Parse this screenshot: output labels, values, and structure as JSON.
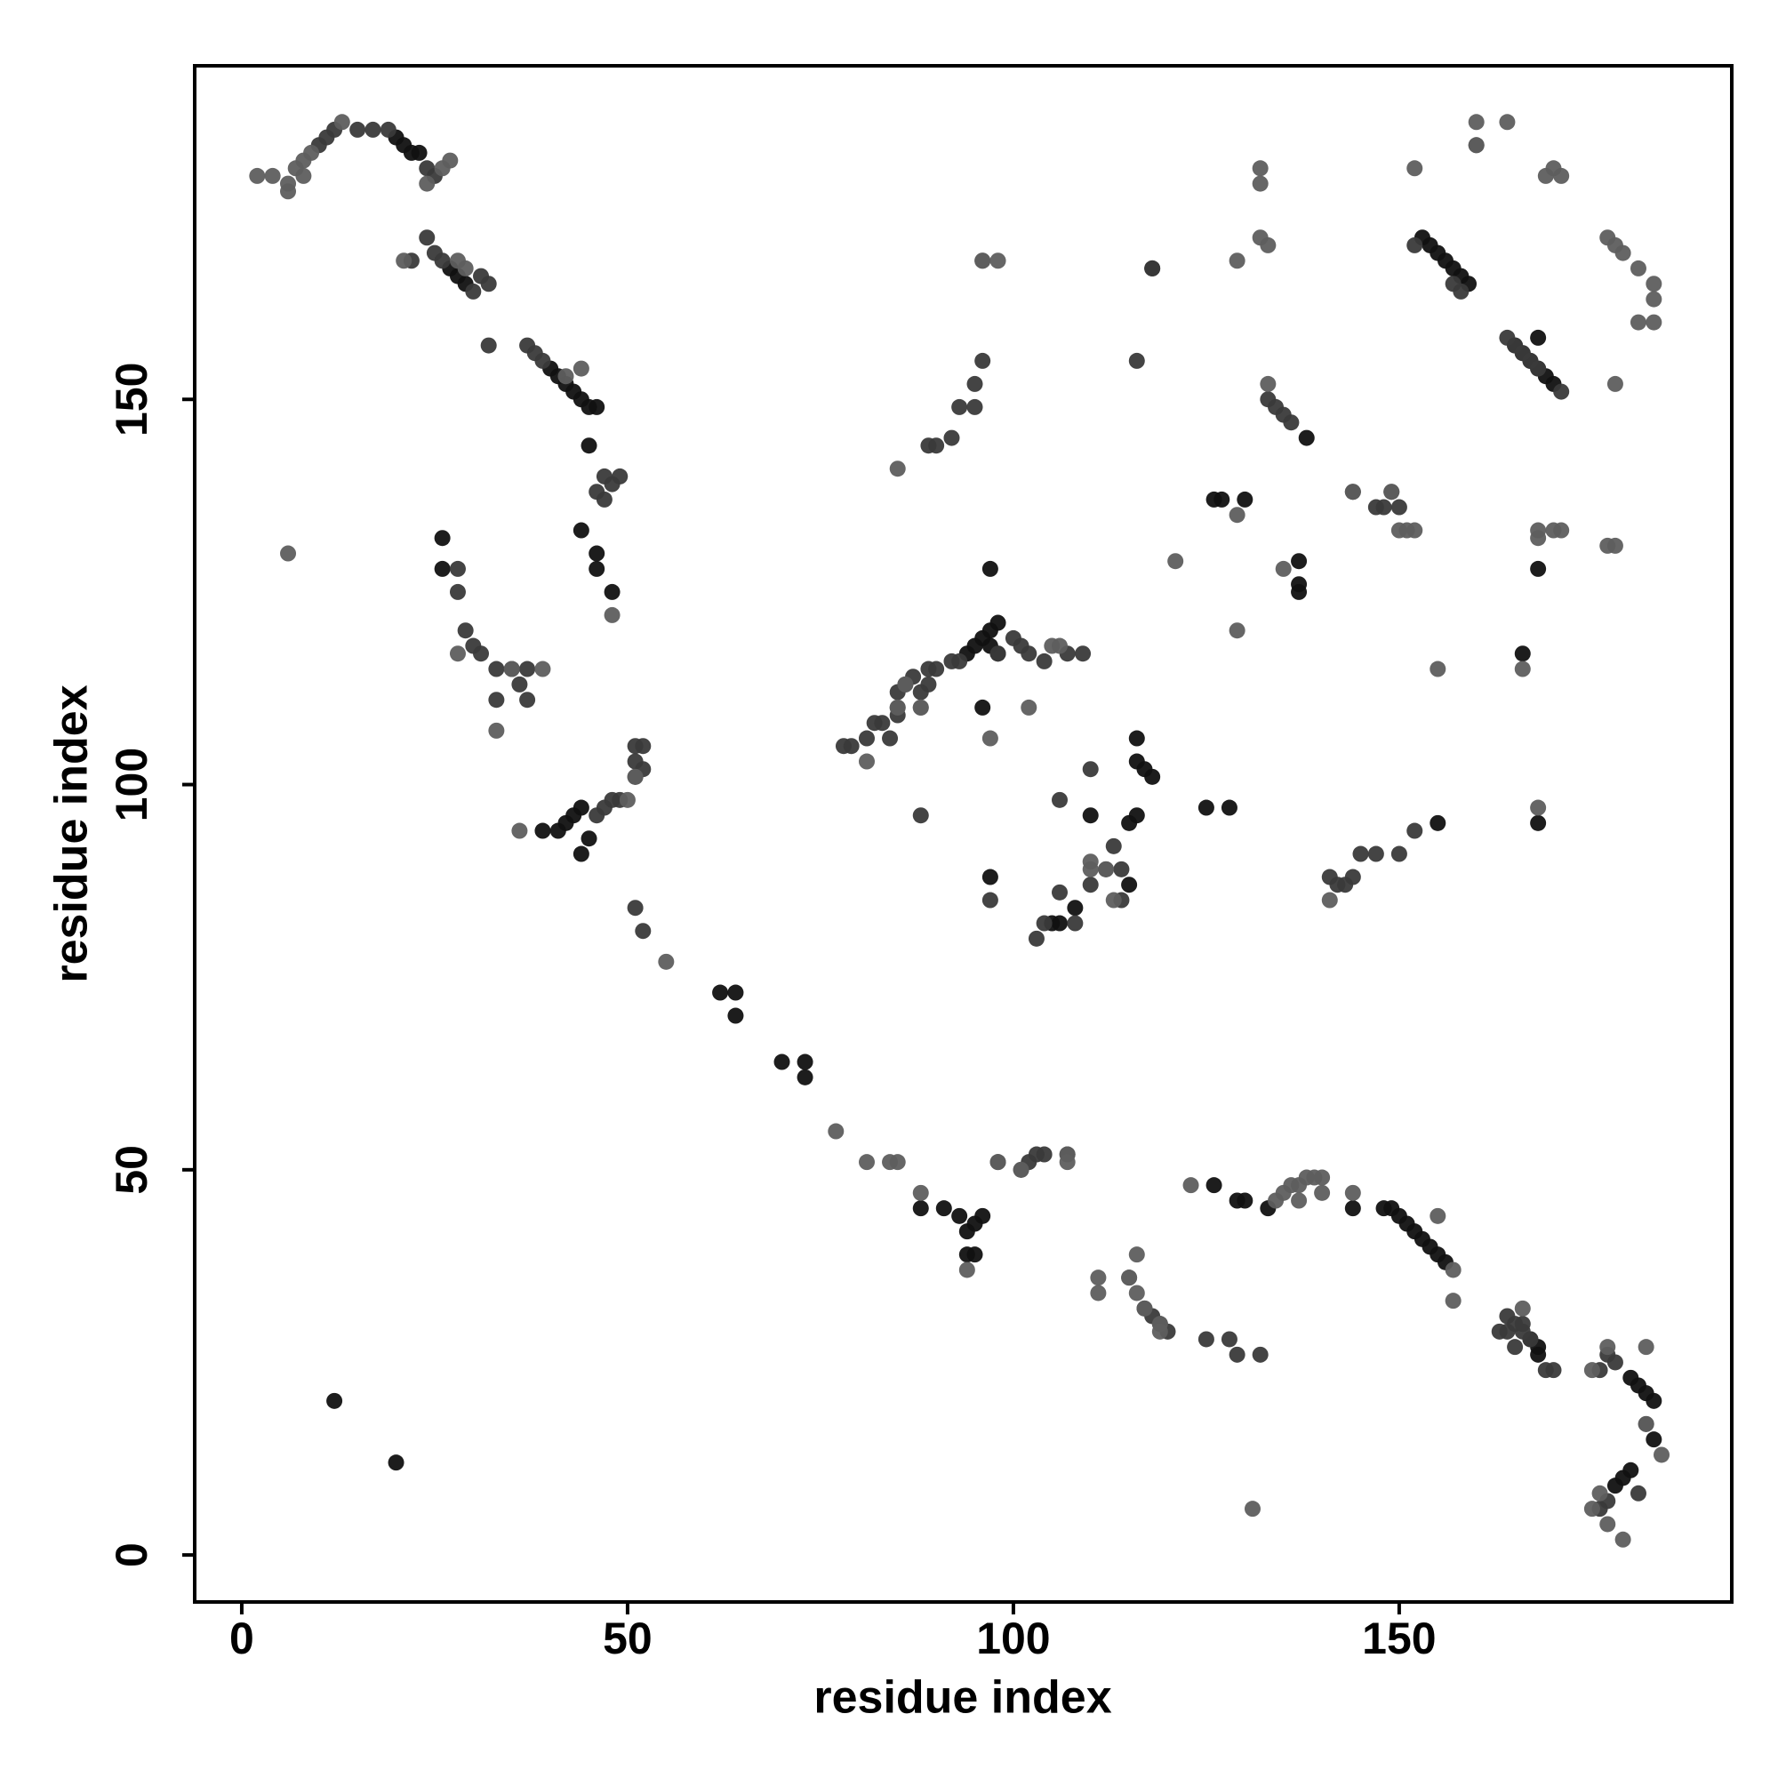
{
  "chart_data": {
    "type": "scatter",
    "xlabel": "residue index",
    "ylabel": "residue index",
    "xlim": [
      -6.1,
      193.1
    ],
    "ylim": [
      -6.1,
      193.3
    ],
    "xticks": [
      0,
      50,
      100,
      150
    ],
    "yticks": [
      0,
      50,
      100,
      150
    ],
    "series": [
      {
        "color": "#111111",
        "x": [
          20,
          21,
          22,
          23,
          27,
          28,
          29,
          40,
          41,
          42,
          43,
          44,
          45,
          46,
          45,
          46,
          46,
          48,
          44,
          26,
          26,
          39,
          41,
          42,
          43,
          44,
          45,
          44,
          62,
          64,
          64,
          70,
          73,
          73,
          88,
          91,
          93,
          94,
          95,
          96,
          94,
          95,
          126,
          129,
          130,
          133,
          144,
          148,
          149,
          150,
          151,
          152,
          153,
          154,
          155,
          156,
          167,
          168,
          168,
          180,
          181,
          182,
          183,
          183,
          180,
          179,
          178,
          94,
          95,
          96,
          97,
          98,
          97,
          98,
          97,
          97,
          110,
          116,
          116,
          117,
          118,
          115,
          116,
          115,
          105,
          106,
          108,
          125,
          128,
          96,
          118,
          137,
          138,
          137,
          137,
          126,
          127,
          130,
          144,
          155,
          153,
          154,
          155,
          156,
          157,
          158,
          159,
          165,
          166,
          167,
          168,
          169,
          170,
          168,
          166,
          168,
          168,
          20,
          12
        ],
        "y": [
          184,
          183,
          182,
          182,
          167,
          166,
          165,
          154,
          153,
          152,
          151,
          150,
          149,
          149,
          144,
          130,
          128,
          125,
          133,
          132,
          128,
          94,
          94,
          95,
          96,
          97,
          93,
          91,
          73,
          73,
          70,
          64,
          64,
          62,
          45,
          45,
          44,
          42,
          43,
          44,
          39,
          39,
          48,
          46,
          46,
          45,
          45,
          45,
          45,
          44,
          43,
          42,
          41,
          40,
          39,
          38,
          28,
          27,
          26,
          23,
          22,
          21,
          20,
          15,
          11,
          10,
          9,
          117,
          118,
          119,
          120,
          121,
          118,
          117,
          128,
          88,
          96,
          106,
          103,
          102,
          101,
          95,
          96,
          87,
          82,
          82,
          84,
          97,
          97,
          110,
          167,
          129,
          145,
          125,
          126,
          137,
          137,
          137,
          138,
          95,
          171,
          170,
          169,
          168,
          167,
          166,
          165,
          157,
          156,
          155,
          154,
          153,
          152,
          158,
          117,
          128,
          95,
          12,
          20
        ]
      },
      {
        "color": "#3a3a3a",
        "x": [
          10,
          11,
          12,
          15,
          17,
          19,
          24,
          25,
          22,
          24,
          25,
          26,
          30,
          31,
          32,
          32,
          37,
          38,
          39,
          47,
          48,
          49,
          46,
          47,
          28,
          28,
          29,
          30,
          31,
          33,
          35,
          37,
          36,
          33,
          37,
          46,
          47,
          48,
          49,
          51,
          52,
          51,
          52,
          51,
          51,
          52,
          78,
          79,
          81,
          82,
          83,
          84,
          85,
          85,
          86,
          87,
          88,
          89,
          89,
          90,
          92,
          93,
          98,
          100,
          101,
          102,
          104,
          107,
          109,
          85,
          88,
          97,
          110,
          113,
          114,
          112,
          110,
          108,
          106,
          104,
          103,
          106,
          114,
          89,
          90,
          92,
          93,
          95,
          95,
          96,
          116,
          118,
          133,
          134,
          135,
          136,
          147,
          148,
          149,
          150,
          141,
          142,
          143,
          144,
          145,
          147,
          150,
          152,
          164,
          165,
          166,
          164,
          165,
          169,
          170,
          98,
          101,
          102,
          103,
          104,
          107,
          117,
          118,
          119,
          120,
          125,
          128,
          129,
          132,
          163,
          166,
          167,
          176,
          177,
          178,
          182,
          181,
          177,
          176,
          152,
          157,
          158,
          164,
          171,
          160,
          165,
          166,
          167,
          168
        ],
        "y": [
          183,
          184,
          185,
          185,
          185,
          185,
          180,
          179,
          168,
          171,
          169,
          168,
          164,
          166,
          165,
          157,
          157,
          156,
          155,
          140,
          139,
          140,
          138,
          137,
          128,
          125,
          120,
          118,
          117,
          115,
          115,
          115,
          113,
          111,
          111,
          96,
          97,
          98,
          98,
          101,
          102,
          103,
          105,
          105,
          84,
          81,
          105,
          105,
          106,
          108,
          108,
          106,
          109,
          112,
          113,
          114,
          112,
          113,
          115,
          115,
          116,
          116,
          117,
          119,
          118,
          117,
          116,
          117,
          117,
          110,
          96,
          85,
          102,
          92,
          89,
          89,
          87,
          82,
          86,
          82,
          80,
          98,
          85,
          144,
          144,
          145,
          149,
          149,
          152,
          155,
          155,
          167,
          150,
          149,
          148,
          147,
          136,
          136,
          138,
          136,
          88,
          87,
          87,
          88,
          91,
          91,
          91,
          94,
          31,
          30,
          29,
          29,
          27,
          24,
          24,
          51,
          50,
          51,
          52,
          52,
          52,
          32,
          31,
          30,
          29,
          28,
          28,
          26,
          26,
          29,
          30,
          28,
          24,
          26,
          25,
          17,
          8,
          7,
          6,
          170,
          165,
          164,
          158,
          151,
          183,
          157,
          156,
          155,
          154
        ]
      },
      {
        "color": "#5e5e5e",
        "x": [
          2,
          4,
          6,
          7,
          8,
          9,
          13,
          26,
          27,
          6,
          8,
          24,
          21,
          28,
          29,
          44,
          42,
          48,
          6,
          28,
          35,
          33,
          39,
          36,
          51,
          50,
          55,
          77,
          81,
          84,
          85,
          88,
          98,
          101,
          107,
          107,
          111,
          111,
          115,
          116,
          117,
          94,
          123,
          134,
          135,
          136,
          137,
          138,
          139,
          140,
          140,
          137,
          144,
          155,
          157,
          157,
          166,
          175,
          177,
          182,
          184,
          175,
          177,
          179,
          182,
          176,
          85,
          86,
          88,
          81,
          88,
          97,
          102,
          105,
          106,
          110,
          112,
          113,
          115,
          119,
          119,
          110,
          85,
          96,
          98,
          96,
          116,
          121,
          129,
          132,
          133,
          133,
          132,
          132,
          129,
          135,
          129,
          149,
          150,
          151,
          152,
          144,
          155,
          141,
          160,
          164,
          170,
          171,
          160,
          169,
          152,
          177,
          178,
          179,
          181,
          183,
          183,
          181,
          183,
          178,
          177,
          178,
          168,
          170,
          171,
          168,
          166,
          168,
          131
        ],
        "y": [
          179,
          179,
          178,
          180,
          181,
          182,
          186,
          180,
          181,
          177,
          179,
          178,
          168,
          168,
          167,
          154,
          153,
          122,
          130,
          117,
          115,
          107,
          115,
          94,
          101,
          98,
          77,
          55,
          51,
          51,
          51,
          47,
          51,
          50,
          52,
          51,
          36,
          34,
          36,
          39,
          32,
          37,
          48,
          46,
          47,
          48,
          48,
          49,
          49,
          49,
          47,
          46,
          47,
          44,
          37,
          33,
          32,
          24,
          27,
          27,
          13,
          6,
          4,
          2,
          17,
          8,
          110,
          113,
          110,
          103,
          110,
          106,
          110,
          118,
          118,
          89,
          89,
          85,
          36,
          30,
          29,
          90,
          141,
          168,
          168,
          168,
          34,
          129,
          168,
          171,
          170,
          152,
          180,
          178,
          120,
          128,
          135,
          138,
          133,
          133,
          133,
          138,
          115,
          85,
          186,
          186,
          180,
          179,
          183,
          179,
          180,
          171,
          170,
          169,
          167,
          165,
          163,
          160,
          160,
          152,
          131,
          131,
          132,
          133,
          133,
          133,
          115,
          97,
          6
        ]
      }
    ]
  }
}
